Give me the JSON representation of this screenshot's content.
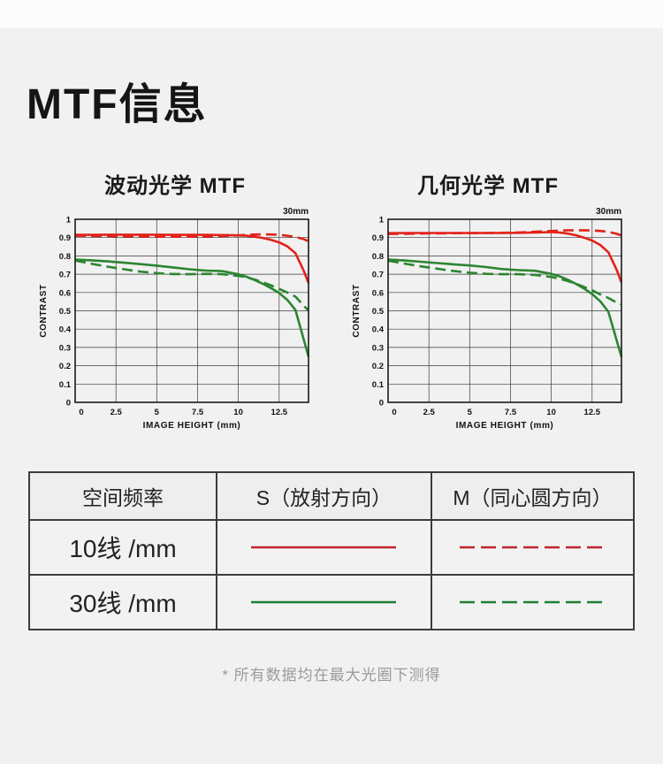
{
  "page": {
    "title": "MTF信息",
    "footnote": "* 所有数据均在最大光圈下测得"
  },
  "colors": {
    "red": "#e3221a",
    "green": "#2c8530",
    "legend_red": "#c0252e",
    "legend_green": "#1e7e34",
    "grid": "#3a3a3a",
    "axis": "#1a1a1a",
    "page_bg": "#f1f1f2",
    "footnote_text": "#9b9b9b"
  },
  "chart_data": [
    {
      "type": "line",
      "title": "波动光学 MTF",
      "corner_label": "30mm",
      "xlabel": "IMAGE HEIGHT (mm)",
      "ylabel": "CONTRAST",
      "xlim": [
        0,
        14.3
      ],
      "ylim": [
        0,
        1
      ],
      "grid": true,
      "legend_position": "none",
      "xticks": [
        "0",
        "2.5",
        "5",
        "7.5",
        "10",
        "12.5"
      ],
      "xtick_values": [
        0,
        2.5,
        5,
        7.5,
        10,
        12.5
      ],
      "yticks": [
        "0",
        "0.1",
        "0.2",
        "0.3",
        "0.4",
        "0.5",
        "0.6",
        "0.7",
        "0.8",
        "0.9",
        "1"
      ],
      "ytick_values": [
        0,
        0.1,
        0.2,
        0.3,
        0.4,
        0.5,
        0.6,
        0.7,
        0.8,
        0.9,
        1
      ],
      "x": [
        0,
        1,
        2,
        3,
        4,
        5,
        6,
        7,
        8,
        9,
        10,
        10.5,
        11,
        11.5,
        12,
        12.5,
        13,
        13.5,
        14,
        14.3
      ],
      "series": [
        {
          "name": "S 10线/mm",
          "direction": "放射方向",
          "style": "solid",
          "color": "red",
          "y": [
            0.915,
            0.915,
            0.916,
            0.916,
            0.916,
            0.916,
            0.915,
            0.915,
            0.915,
            0.914,
            0.912,
            0.91,
            0.905,
            0.898,
            0.888,
            0.874,
            0.852,
            0.815,
            0.72,
            0.652
          ]
        },
        {
          "name": "M 10线/mm",
          "direction": "同心圆方向",
          "style": "dashed",
          "color": "red",
          "y": [
            0.91,
            0.909,
            0.908,
            0.907,
            0.906,
            0.905,
            0.905,
            0.905,
            0.906,
            0.908,
            0.912,
            0.915,
            0.917,
            0.918,
            0.917,
            0.915,
            0.91,
            0.904,
            0.892,
            0.88
          ]
        },
        {
          "name": "S 30线/mm",
          "direction": "放射方向",
          "style": "solid",
          "color": "green",
          "y": [
            0.78,
            0.776,
            0.77,
            0.763,
            0.755,
            0.747,
            0.737,
            0.727,
            0.72,
            0.717,
            0.7,
            0.686,
            0.668,
            0.648,
            0.624,
            0.597,
            0.56,
            0.505,
            0.345,
            0.25
          ]
        },
        {
          "name": "M 30线/mm",
          "direction": "同心圆方向",
          "style": "dashed",
          "color": "green",
          "y": [
            0.775,
            0.757,
            0.741,
            0.727,
            0.714,
            0.706,
            0.701,
            0.7,
            0.702,
            0.7,
            0.691,
            0.683,
            0.671,
            0.656,
            0.639,
            0.62,
            0.6,
            0.578,
            0.528,
            0.502
          ]
        }
      ]
    },
    {
      "type": "line",
      "title": "几何光学 MTF",
      "corner_label": "30mm",
      "xlabel": "IMAGE HEIGHT (mm)",
      "ylabel": "CONTRAST",
      "xlim": [
        0,
        14.3
      ],
      "ylim": [
        0,
        1
      ],
      "grid": true,
      "legend_position": "none",
      "xticks": [
        "0",
        "2.5",
        "5",
        "7.5",
        "10",
        "12.5"
      ],
      "xtick_values": [
        0,
        2.5,
        5,
        7.5,
        10,
        12.5
      ],
      "yticks": [
        "0",
        "0.1",
        "0.2",
        "0.3",
        "0.4",
        "0.5",
        "0.6",
        "0.7",
        "0.8",
        "0.9",
        "1"
      ],
      "ytick_values": [
        0,
        0.1,
        0.2,
        0.3,
        0.4,
        0.5,
        0.6,
        0.7,
        0.8,
        0.9,
        1
      ],
      "x": [
        0,
        1,
        2,
        3,
        4,
        5,
        6,
        7,
        8,
        9,
        10,
        10.5,
        11,
        11.5,
        12,
        12.5,
        13,
        13.5,
        14,
        14.3
      ],
      "series": [
        {
          "name": "S 10线/mm",
          "direction": "放射方向",
          "style": "solid",
          "color": "red",
          "y": [
            0.924,
            0.925,
            0.925,
            0.925,
            0.925,
            0.925,
            0.925,
            0.925,
            0.926,
            0.928,
            0.93,
            0.928,
            0.922,
            0.913,
            0.9,
            0.884,
            0.86,
            0.82,
            0.725,
            0.655
          ]
        },
        {
          "name": "M 10线/mm",
          "direction": "同心圆方向",
          "style": "dashed",
          "color": "red",
          "y": [
            0.92,
            0.921,
            0.922,
            0.923,
            0.924,
            0.924,
            0.925,
            0.926,
            0.928,
            0.932,
            0.936,
            0.938,
            0.94,
            0.94,
            0.94,
            0.939,
            0.936,
            0.932,
            0.921,
            0.912
          ]
        },
        {
          "name": "S 30线/mm",
          "direction": "放射方向",
          "style": "solid",
          "color": "green",
          "y": [
            0.78,
            0.775,
            0.768,
            0.761,
            0.754,
            0.748,
            0.739,
            0.728,
            0.722,
            0.719,
            0.702,
            0.689,
            0.67,
            0.648,
            0.622,
            0.592,
            0.552,
            0.495,
            0.34,
            0.248
          ]
        },
        {
          "name": "M 30线/mm",
          "direction": "同心圆方向",
          "style": "dashed",
          "color": "green",
          "y": [
            0.774,
            0.758,
            0.743,
            0.73,
            0.718,
            0.708,
            0.702,
            0.7,
            0.7,
            0.696,
            0.685,
            0.676,
            0.663,
            0.648,
            0.631,
            0.612,
            0.59,
            0.57,
            0.545,
            0.535
          ]
        }
      ]
    }
  ],
  "table": {
    "headers": [
      "空间频率",
      "S（放射方向）",
      "M（同心圆方向）"
    ],
    "rows": [
      {
        "label": "10线 /mm",
        "s": {
          "style": "solid",
          "color": "red"
        },
        "m": {
          "style": "dashed",
          "color": "red"
        }
      },
      {
        "label": "30线 /mm",
        "s": {
          "style": "solid",
          "color": "green"
        },
        "m": {
          "style": "dashed",
          "color": "green"
        }
      }
    ]
  }
}
